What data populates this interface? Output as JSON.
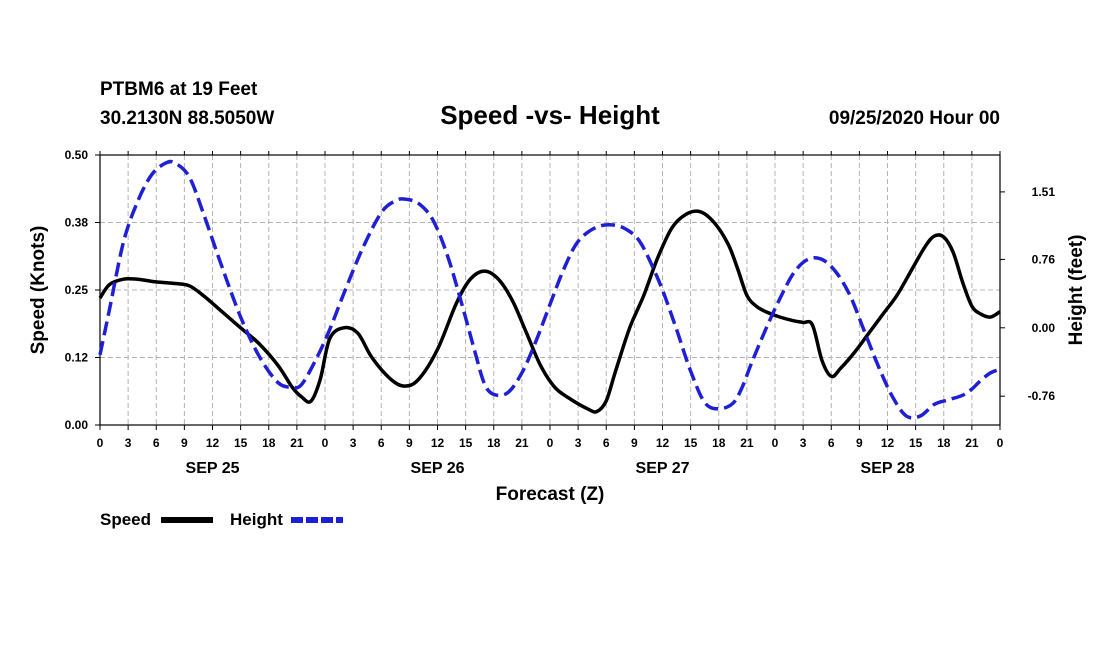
{
  "station": {
    "name": "PTBM6 at 19 Feet",
    "coords": "30.2130N 88.5050W",
    "issued": "09/25/2020 Hour 00"
  },
  "legend": {
    "speed_label": "Speed",
    "height_label": "Height"
  },
  "colors": {
    "speed": "#000000",
    "height": "#1f1fd6",
    "grid": "#b4b4b4"
  },
  "chart_data": {
    "type": "line",
    "title": "Speed -vs- Height",
    "xlabel": "Forecast (Z)",
    "ylabel": "Speed (Knots)",
    "y2label": "Height (feet)",
    "x_hour_range": [
      0,
      96
    ],
    "ylim": [
      0,
      0.5
    ],
    "y2lim": [
      -1.08,
      1.92
    ],
    "yticks": [
      "0.00",
      "0.12",
      "0.25",
      "0.38",
      "0.50"
    ],
    "y2ticks": [
      "-0.76",
      "0.00",
      "0.76",
      "1.51"
    ],
    "x_tick_labels": [
      "0",
      "3",
      "6",
      "9",
      "12",
      "15",
      "18",
      "21",
      "0",
      "3",
      "6",
      "9",
      "12",
      "15",
      "18",
      "21",
      "0",
      "3",
      "6",
      "9",
      "12",
      "15",
      "18",
      "21",
      "0",
      "3",
      "6",
      "9",
      "12",
      "15",
      "18",
      "21",
      "0"
    ],
    "date_labels": [
      "SEP 25",
      "SEP 26",
      "SEP 27",
      "SEP 28"
    ],
    "series": [
      {
        "name": "Speed",
        "axis": "left",
        "style": "solid",
        "x": [
          0,
          1,
          2.5,
          4,
          6,
          8,
          9.5,
          11,
          13,
          15,
          17,
          19,
          20.5,
          21.5,
          22.5,
          23.5,
          24.5,
          26,
          27.5,
          29,
          31,
          32.5,
          34,
          36,
          38,
          39.5,
          41,
          42.5,
          44,
          45.5,
          47,
          48.5,
          50,
          52,
          53,
          54,
          55,
          56.5,
          58,
          59.5,
          61,
          62.5,
          64,
          65.5,
          67,
          68,
          69,
          70,
          71,
          72.5,
          74,
          75,
          76,
          77,
          78,
          79,
          80.5,
          82,
          83.5,
          85,
          86.5,
          88,
          89,
          90,
          91,
          92,
          93,
          94,
          95,
          96
        ],
        "values": [
          0.235,
          0.26,
          0.27,
          0.27,
          0.265,
          0.262,
          0.258,
          0.24,
          0.21,
          0.18,
          0.15,
          0.11,
          0.07,
          0.052,
          0.044,
          0.085,
          0.16,
          0.18,
          0.17,
          0.125,
          0.085,
          0.072,
          0.085,
          0.14,
          0.225,
          0.27,
          0.285,
          0.27,
          0.23,
          0.17,
          0.11,
          0.07,
          0.05,
          0.03,
          0.025,
          0.045,
          0.1,
          0.18,
          0.24,
          0.31,
          0.365,
          0.39,
          0.395,
          0.375,
          0.335,
          0.29,
          0.24,
          0.22,
          0.21,
          0.2,
          0.193,
          0.19,
          0.185,
          0.12,
          0.09,
          0.105,
          0.135,
          0.17,
          0.205,
          0.24,
          0.285,
          0.33,
          0.35,
          0.348,
          0.32,
          0.265,
          0.22,
          0.205,
          0.2,
          0.21
        ]
      },
      {
        "name": "Height",
        "axis": "right",
        "style": "dashed",
        "x": [
          0,
          1,
          2.5,
          4,
          5.5,
          7,
          8,
          9.5,
          11,
          13,
          15,
          17,
          19,
          20.5,
          21.5,
          23,
          24.5,
          26,
          28,
          30,
          31.5,
          32.5,
          34,
          35.5,
          37,
          38.5,
          40,
          41,
          42,
          43.5,
          45,
          46.5,
          48,
          49.5,
          51,
          53,
          55,
          56.5,
          57.5,
          58.5,
          60,
          61.5,
          63,
          64.5,
          66,
          67.5,
          68.5,
          69.5,
          71,
          72.5,
          74,
          75.5,
          77,
          78.5,
          80,
          81.5,
          83,
          84.5,
          86,
          87.5,
          89,
          90.5,
          92,
          93,
          94,
          95,
          96
        ],
        "values": [
          -0.3,
          0.2,
          0.95,
          1.4,
          1.7,
          1.83,
          1.83,
          1.68,
          1.28,
          0.68,
          0.12,
          -0.32,
          -0.61,
          -0.66,
          -0.63,
          -0.36,
          -0.02,
          0.38,
          0.88,
          1.28,
          1.41,
          1.43,
          1.38,
          1.2,
          0.82,
          0.3,
          -0.27,
          -0.62,
          -0.74,
          -0.72,
          -0.5,
          -0.15,
          0.26,
          0.66,
          0.96,
          1.12,
          1.14,
          1.07,
          0.97,
          0.78,
          0.42,
          -0.02,
          -0.48,
          -0.83,
          -0.9,
          -0.84,
          -0.66,
          -0.39,
          -0.02,
          0.32,
          0.61,
          0.76,
          0.76,
          0.62,
          0.36,
          -0.03,
          -0.42,
          -0.76,
          -0.98,
          -0.98,
          -0.85,
          -0.8,
          -0.75,
          -0.68,
          -0.58,
          -0.5,
          -0.46
        ]
      }
    ]
  }
}
